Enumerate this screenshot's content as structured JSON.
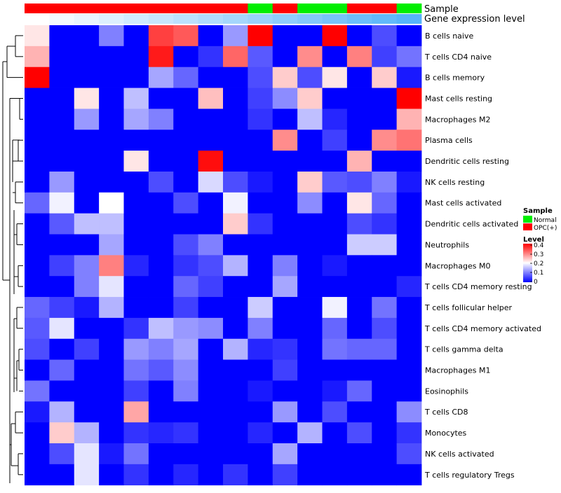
{
  "chart_data": {
    "type": "heatmap",
    "annotation_titles": {
      "sample": "Sample",
      "gene": "Gene expression level"
    },
    "legend": {
      "sample_title": "Sample",
      "sample_entries": [
        {
          "label": "Normal",
          "color": "#00ee00"
        },
        {
          "label": "OPC(+)",
          "color": "#ff0000"
        }
      ],
      "level_title": "Level",
      "level_ticks": [
        "0.4",
        "0.3",
        "0.2",
        "0.1",
        "0"
      ]
    },
    "scale": {
      "min": 0,
      "max": 0.4,
      "low_color": "#0000ff",
      "mid_color": "#ffffff",
      "high_color": "#ff0000"
    },
    "sample_groups": [
      "OPC(+)",
      "OPC(+)",
      "OPC(+)",
      "OPC(+)",
      "OPC(+)",
      "OPC(+)",
      "OPC(+)",
      "OPC(+)",
      "OPC(+)",
      "Normal",
      "OPC(+)",
      "Normal",
      "Normal",
      "OPC(+)",
      "OPC(+)",
      "Normal"
    ],
    "gene_expression_level": [
      0.0,
      0.07,
      0.13,
      0.2,
      0.27,
      0.33,
      0.4,
      0.47,
      0.53,
      0.6,
      0.67,
      0.73,
      0.8,
      0.87,
      0.93,
      1.0
    ],
    "rows": [
      "B cells naive",
      "T cells CD4 naive",
      "B cells memory",
      "Mast cells resting",
      "Macrophages M2",
      "Plasma cells",
      "Dendritic cells resting",
      "NK cells resting",
      "Mast cells activated",
      "Dendritic cells activated",
      "Neutrophils",
      "Macrophages M0",
      "T cells CD4 memory resting",
      "T cells follicular helper",
      "T cells CD4 memory activated",
      "T cells gamma delta",
      "Macrophages M1",
      "Eosinophils",
      "T cells CD8",
      "Monocytes",
      "NK cells activated",
      "T cells regulatory  Tregs"
    ],
    "values": [
      [
        0.22,
        0,
        0,
        0.1,
        0,
        0.35,
        0.33,
        0,
        0.12,
        0.4,
        0,
        0,
        0.4,
        0,
        0.06,
        0
      ],
      [
        0.26,
        0,
        0,
        0,
        0,
        0.38,
        0,
        0.04,
        0.32,
        0.07,
        0,
        0.29,
        0,
        0.3,
        0.05,
        0.09
      ],
      [
        0.4,
        0,
        0,
        0,
        0,
        0.13,
        0.08,
        0,
        0,
        0.06,
        0.24,
        0.06,
        0.22,
        0,
        0.24,
        0.02
      ],
      [
        0,
        0,
        0.22,
        0,
        0.15,
        0,
        0,
        0.25,
        0,
        0.05,
        0.11,
        0.24,
        0,
        0,
        0,
        0.4
      ],
      [
        0,
        0,
        0.12,
        0,
        0.13,
        0.1,
        0,
        0,
        0,
        0.04,
        0,
        0.15,
        0.03,
        0,
        0,
        0.26
      ],
      [
        0,
        0,
        0,
        0,
        0,
        0,
        0,
        0,
        0,
        0,
        0.29,
        0,
        0.05,
        0,
        0.29,
        0.31
      ],
      [
        0,
        0,
        0,
        0,
        0.22,
        0,
        0,
        0.39,
        0,
        0,
        0,
        0,
        0,
        0.26,
        0,
        0
      ],
      [
        0,
        0.12,
        0,
        0,
        0,
        0.06,
        0,
        0.17,
        0.06,
        0.02,
        0,
        0.24,
        0.07,
        0.06,
        0.1,
        0.02
      ],
      [
        0.08,
        0.19,
        0,
        0.2,
        0,
        0,
        0.06,
        0,
        0.19,
        0,
        0,
        0.11,
        0,
        0.22,
        0.08,
        0
      ],
      [
        0,
        0.07,
        0.15,
        0.15,
        0,
        0,
        0,
        0,
        0.24,
        0.04,
        0,
        0,
        0,
        0.06,
        0.04,
        0
      ],
      [
        0,
        0,
        0,
        0.13,
        0,
        0,
        0.06,
        0.1,
        0,
        0,
        0,
        0,
        0,
        0.16,
        0.16,
        0
      ],
      [
        0,
        0.05,
        0.1,
        0.3,
        0.03,
        0,
        0.04,
        0.06,
        0.14,
        0,
        0.1,
        0,
        0.02,
        0,
        0,
        0
      ],
      [
        0,
        0,
        0.1,
        0.18,
        0,
        0,
        0.08,
        0.05,
        0,
        0,
        0.13,
        0,
        0,
        0,
        0,
        0.03
      ],
      [
        0.08,
        0.05,
        0.02,
        0.14,
        0,
        0,
        0.05,
        0,
        0,
        0.16,
        0,
        0,
        0.19,
        0,
        0.09,
        0
      ],
      [
        0.07,
        0.18,
        0,
        0,
        0.04,
        0.15,
        0.12,
        0.11,
        0,
        0.1,
        0,
        0,
        0.08,
        0,
        0.06,
        0
      ],
      [
        0.06,
        0,
        0.05,
        0,
        0.12,
        0.1,
        0.13,
        0,
        0.14,
        0.03,
        0.04,
        0,
        0.09,
        0.08,
        0.08,
        0
      ],
      [
        0,
        0.08,
        0,
        0,
        0.09,
        0.07,
        0.11,
        0,
        0,
        0,
        0.05,
        0,
        0,
        0,
        0,
        0
      ],
      [
        0.09,
        0,
        0,
        0,
        0.05,
        0,
        0.1,
        0,
        0,
        0.02,
        0,
        0,
        0.02,
        0.08,
        0,
        0
      ],
      [
        0.02,
        0.14,
        0,
        0,
        0.27,
        0,
        0,
        0,
        0,
        0,
        0.12,
        0,
        0.06,
        0,
        0,
        0.11
      ],
      [
        0,
        0.24,
        0.14,
        0,
        0.04,
        0.03,
        0.04,
        0,
        0,
        0.03,
        0,
        0.14,
        0,
        0.06,
        0,
        0.04
      ],
      [
        0,
        0.06,
        0.18,
        0.02,
        0.09,
        0,
        0,
        0,
        0,
        0,
        0.13,
        0,
        0,
        0,
        0,
        0.06
      ],
      [
        0,
        0,
        0.18,
        0,
        0.04,
        0,
        0.03,
        0,
        0.04,
        0,
        0.05,
        0,
        0,
        0,
        0,
        0
      ]
    ]
  }
}
